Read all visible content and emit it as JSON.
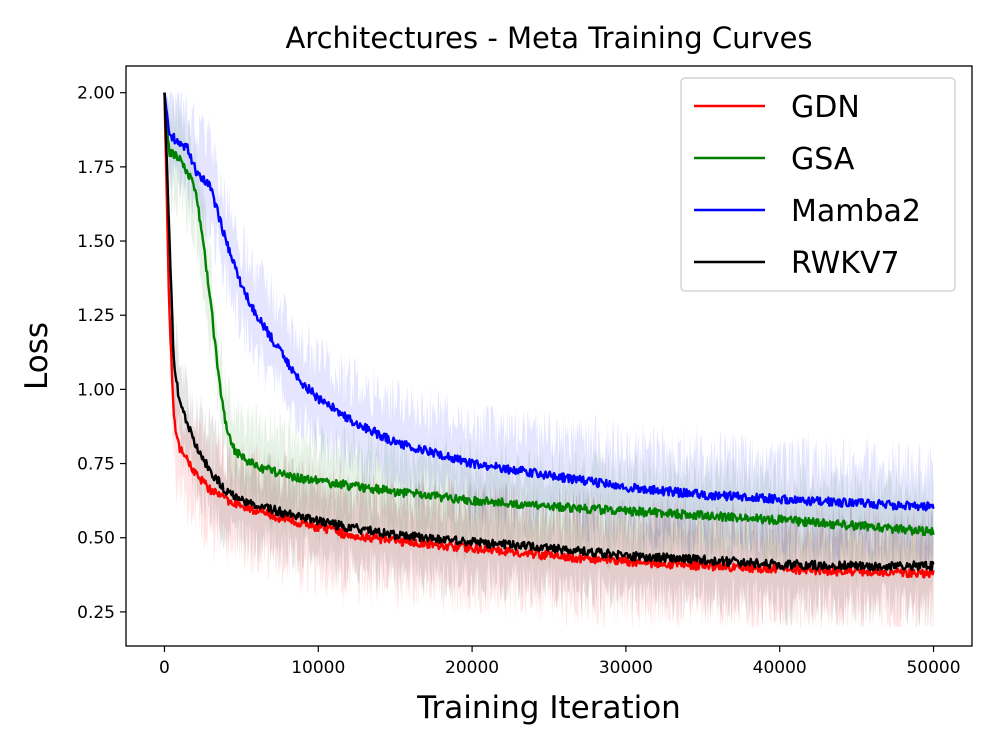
{
  "chart_data": {
    "type": "line",
    "title": "Architectures - Meta Training Curves",
    "xlabel": "Training Iteration",
    "ylabel": "Loss",
    "xlim": [
      -2500,
      52500
    ],
    "ylim": [
      0.135,
      2.09
    ],
    "x_ticks": [
      0,
      10000,
      20000,
      30000,
      40000,
      50000
    ],
    "x_tick_labels": [
      "0",
      "10000",
      "20000",
      "30000",
      "40000",
      "50000"
    ],
    "y_ticks": [
      0.25,
      0.5,
      0.75,
      1.0,
      1.25,
      1.5,
      1.75,
      2.0
    ],
    "y_tick_labels": [
      "0.25",
      "0.50",
      "0.75",
      "1.00",
      "1.25",
      "1.50",
      "1.75",
      "2.00"
    ],
    "grid": false,
    "legend_position": "top-right",
    "series": [
      {
        "name": "GDN",
        "color": "#ff0000",
        "band_spread": 0.17,
        "x": [
          0,
          300,
          600,
          1000,
          2000,
          3000,
          4000,
          5000,
          6000,
          8000,
          10000,
          12000,
          15000,
          20000,
          25000,
          30000,
          35000,
          40000,
          45000,
          50000
        ],
        "y": [
          2.0,
          1.3,
          0.9,
          0.8,
          0.72,
          0.66,
          0.63,
          0.61,
          0.59,
          0.56,
          0.535,
          0.51,
          0.49,
          0.465,
          0.44,
          0.42,
          0.405,
          0.395,
          0.385,
          0.38
        ]
      },
      {
        "name": "GSA",
        "color": "#008000",
        "band_spread": 0.15,
        "x": [
          0,
          300,
          1000,
          2000,
          2500,
          3000,
          3500,
          4000,
          4500,
          5000,
          6000,
          8000,
          10000,
          15000,
          20000,
          25000,
          30000,
          35000,
          40000,
          45000,
          50000
        ],
        "y": [
          2.0,
          1.8,
          1.78,
          1.68,
          1.5,
          1.3,
          1.05,
          0.88,
          0.8,
          0.77,
          0.74,
          0.71,
          0.69,
          0.655,
          0.625,
          0.605,
          0.59,
          0.575,
          0.56,
          0.54,
          0.52
        ]
      },
      {
        "name": "Mamba2",
        "color": "#0000ff",
        "band_spread": 0.16,
        "x": [
          0,
          300,
          1000,
          1500,
          2000,
          3000,
          4000,
          5000,
          6000,
          7000,
          8000,
          9000,
          10000,
          12000,
          15000,
          20000,
          25000,
          30000,
          35000,
          40000,
          45000,
          50000
        ],
        "y": [
          2.0,
          1.86,
          1.83,
          1.81,
          1.74,
          1.68,
          1.5,
          1.35,
          1.25,
          1.17,
          1.09,
          1.02,
          0.97,
          0.9,
          0.82,
          0.75,
          0.71,
          0.67,
          0.645,
          0.63,
          0.615,
          0.605
        ]
      },
      {
        "name": "RWKV7",
        "color": "#000000",
        "band_spread": 0.15,
        "x": [
          0,
          300,
          600,
          1000,
          2000,
          3000,
          4000,
          5000,
          6000,
          8000,
          10000,
          12000,
          15000,
          20000,
          25000,
          30000,
          35000,
          40000,
          45000,
          50000
        ],
        "y": [
          2.0,
          1.55,
          1.1,
          0.95,
          0.82,
          0.72,
          0.66,
          0.63,
          0.61,
          0.58,
          0.555,
          0.535,
          0.51,
          0.485,
          0.465,
          0.44,
          0.425,
          0.41,
          0.405,
          0.405
        ]
      }
    ]
  }
}
